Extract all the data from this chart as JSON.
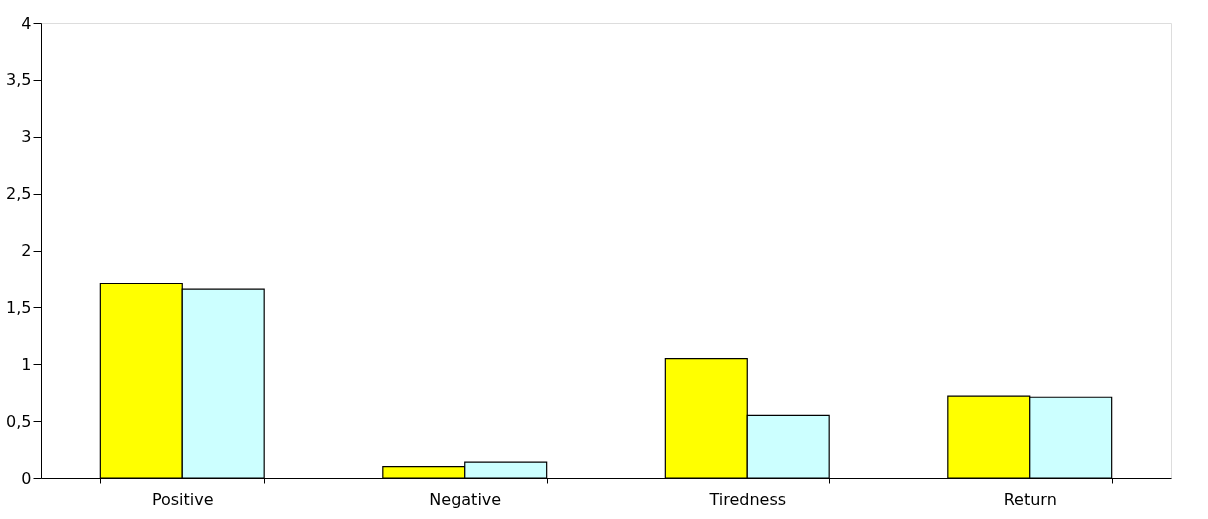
{
  "chart_data": {
    "type": "bar",
    "categories": [
      "Positive",
      "Negative",
      "Tiredness",
      "Return"
    ],
    "series": [
      {
        "color": "#ffff00",
        "values": [
          1.71,
          0.1,
          1.05,
          0.72
        ]
      },
      {
        "color": "#ccffff",
        "values": [
          1.66,
          0.14,
          0.55,
          0.71
        ]
      }
    ],
    "ylim": [
      0,
      4
    ],
    "yticks": [
      0,
      {
        "value": 0.5,
        "label": "0,5"
      },
      1,
      {
        "value": 1.5,
        "label": "1,5"
      },
      2,
      {
        "value": 2.5,
        "label": "2,5"
      },
      3,
      {
        "value": 3.5,
        "label": "3,5"
      },
      4
    ],
    "grid": false,
    "legend": false
  }
}
